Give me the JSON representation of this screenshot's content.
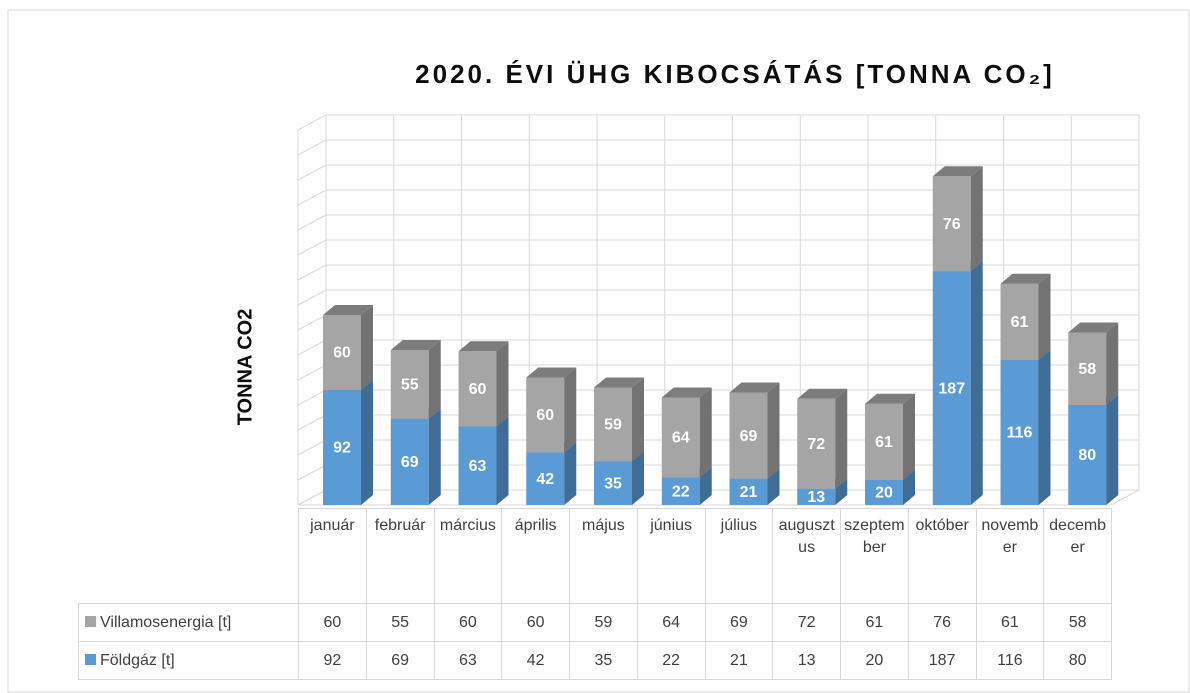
{
  "chart_data": {
    "type": "bar3d_stacked",
    "title": "2020. ÉVI ÜHG KIBOCSÁTÁS [TONNA CO₂]",
    "y_label": "TONNA CO2",
    "categories": [
      "január",
      "február",
      "március",
      "április",
      "május",
      "június",
      "július",
      "augusztus",
      "szeptember",
      "október",
      "november",
      "december"
    ],
    "series": [
      {
        "name": "Földgáz [t]",
        "color": "#5b9bd5",
        "values": [
          92,
          69,
          63,
          42,
          35,
          22,
          21,
          13,
          20,
          187,
          116,
          80
        ]
      },
      {
        "name": "Villamosenergia [t]",
        "color": "#a5a5a5",
        "values": [
          60,
          55,
          60,
          60,
          59,
          64,
          69,
          72,
          61,
          76,
          61,
          58
        ]
      }
    ],
    "ylim": [
      0,
      300
    ],
    "yticks": [
      0,
      20,
      40,
      60,
      80,
      100,
      120,
      140,
      160,
      180,
      200,
      220,
      240,
      260,
      280,
      300
    ],
    "grid": true
  }
}
